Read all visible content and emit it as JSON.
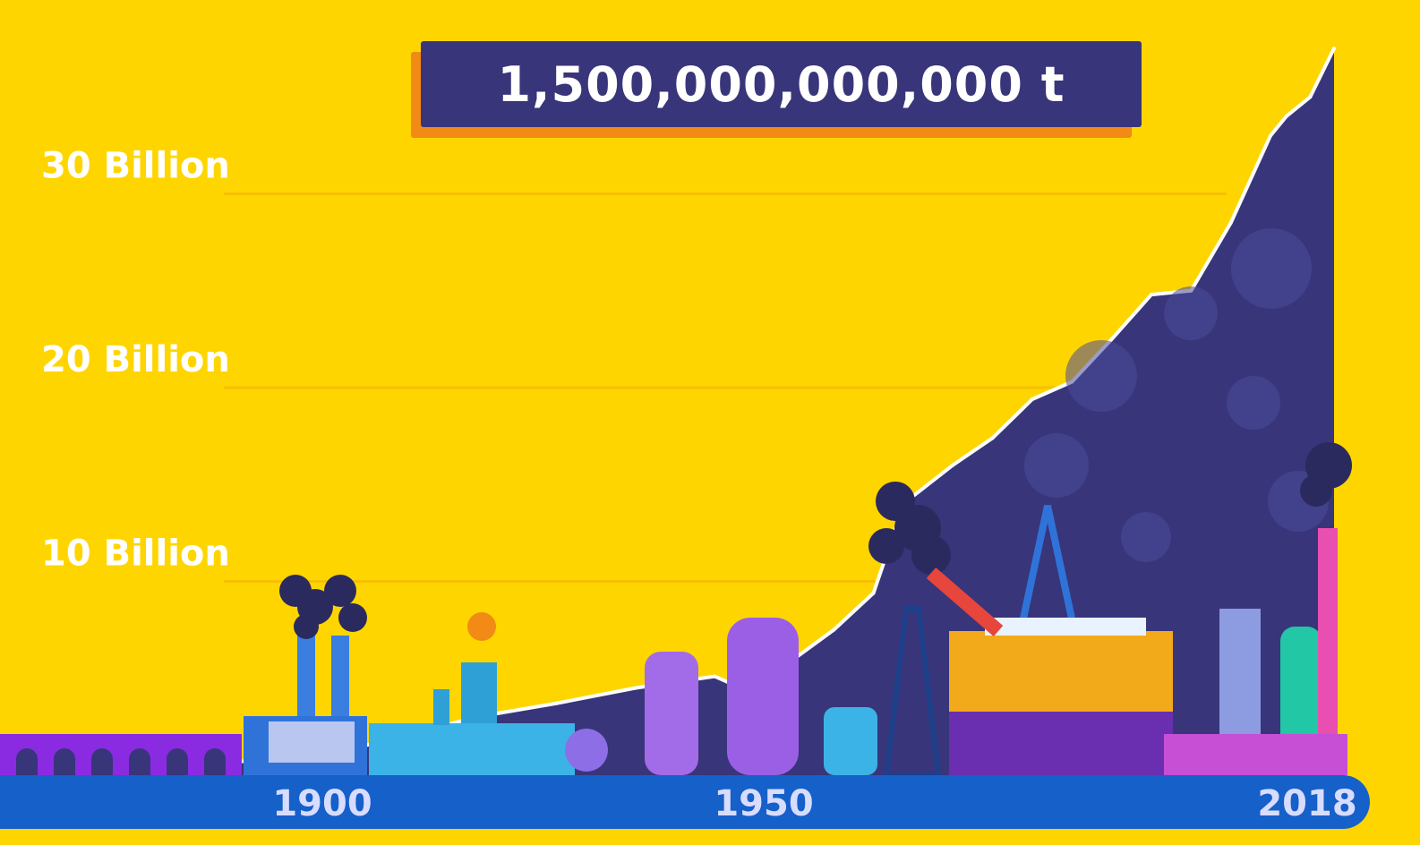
{
  "counter": {
    "total_label": "1,500,000,000,000 t"
  },
  "chart_data": {
    "type": "area",
    "x": [
      1850,
      1870,
      1890,
      1900,
      1910,
      1920,
      1930,
      1940,
      1945,
      1950,
      1955,
      1960,
      1963,
      1965,
      1970,
      1975,
      1980,
      1985,
      1990,
      1995,
      2000,
      2005,
      2010,
      2012,
      2015,
      2018
    ],
    "series": [
      {
        "values": [
          0.2,
          0.4,
          1.0,
          1.9,
          3.0,
          3.7,
          4.5,
          5.1,
          4.2,
          6.0,
          7.5,
          9.4,
          13.0,
          14.4,
          16.0,
          17.4,
          19.4,
          20.3,
          22.5,
          24.8,
          25.0,
          28.5,
          33.0,
          34.0,
          35.0,
          37.5
        ]
      }
    ],
    "xticks": [
      "1900",
      "1950",
      "2018"
    ],
    "yticks": [
      "10 Billion",
      "20 Billion",
      "30 Billion"
    ],
    "ytick_values": [
      10,
      20,
      30
    ],
    "xlim": [
      1850,
      2018
    ],
    "ylim": [
      0,
      40
    ],
    "grid": true,
    "colors": {
      "background": "#FFD500",
      "area": "#38357a",
      "outline": "#ffffff",
      "axis_bar": "#1560c9",
      "counter_box": "#38357a",
      "counter_shadow": "#f28a16"
    }
  }
}
